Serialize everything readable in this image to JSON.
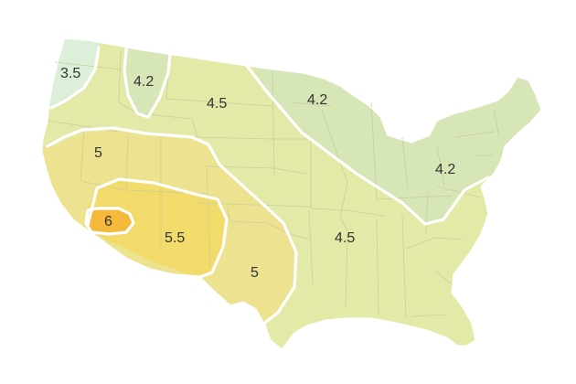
{
  "colors": {
    "zone_3_5": "#dcefd8",
    "zone_4_2": "#d6e6b6",
    "zone_4_5": "#e3e9a7",
    "zone_5": "#ede28f",
    "zone_5_5": "#f2db6b",
    "zone_6": "#f5b93b",
    "state_border": "#c9cf9b",
    "contour": "#ffffff",
    "label_text": "#333333"
  },
  "zones": [
    {
      "id": "z-3-5-nw",
      "label": "3.5",
      "level": 3.5
    },
    {
      "id": "z-4-2-mt",
      "label": "4.2",
      "level": 4.2
    },
    {
      "id": "z-4-5-plains",
      "label": "4.5",
      "level": 4.5
    },
    {
      "id": "z-4-2-mw",
      "label": "4.2",
      "level": 4.2
    },
    {
      "id": "z-5-gb",
      "label": "5",
      "level": 5
    },
    {
      "id": "z-4-2-ne",
      "label": "4.2",
      "level": 4.2
    },
    {
      "id": "z-6-sw",
      "label": "6",
      "level": 6
    },
    {
      "id": "z-5-5-sw",
      "label": "5.5",
      "level": 5.5
    },
    {
      "id": "z-4-5-south",
      "label": "4.5",
      "level": 4.5
    },
    {
      "id": "z-5-tx",
      "label": "5",
      "level": 5
    }
  ]
}
